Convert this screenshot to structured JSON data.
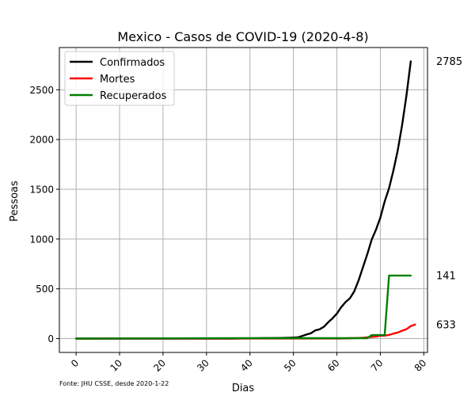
{
  "chart_data": {
    "type": "line",
    "title": "Mexico - Casos de COVID-19 (2020-4-8)",
    "xlabel": "Dias",
    "ylabel": "Pessoas",
    "xlim": [
      -3.85,
      80.85
    ],
    "ylim": [
      -139.25,
      2924.25
    ],
    "x_ticks": [
      0,
      10,
      20,
      30,
      40,
      50,
      60,
      70,
      80
    ],
    "y_ticks": [
      0,
      500,
      1000,
      1500,
      2000,
      2500
    ],
    "grid": true,
    "legend_position": "top-left",
    "source_note": "Fonte: JHU CSSE, desde 2020-1-22",
    "end_labels": [
      "2785",
      "633",
      "141"
    ],
    "series": [
      {
        "name": "Confirmados",
        "color": "#000000",
        "points": [
          [
            0,
            0
          ],
          [
            36,
            0
          ],
          [
            37,
            1
          ],
          [
            40,
            2
          ],
          [
            43,
            4
          ],
          [
            45,
            5
          ],
          [
            47,
            6
          ],
          [
            49,
            8
          ],
          [
            50,
            10
          ],
          [
            51,
            12
          ],
          [
            52,
            26
          ],
          [
            53,
            41
          ],
          [
            54,
            53
          ],
          [
            55,
            82
          ],
          [
            56,
            93
          ],
          [
            57,
            118
          ],
          [
            58,
            164
          ],
          [
            59,
            203
          ],
          [
            60,
            251
          ],
          [
            61,
            316
          ],
          [
            62,
            367
          ],
          [
            63,
            405
          ],
          [
            64,
            475
          ],
          [
            65,
            585
          ],
          [
            66,
            717
          ],
          [
            67,
            848
          ],
          [
            68,
            993
          ],
          [
            69,
            1094
          ],
          [
            70,
            1215
          ],
          [
            71,
            1378
          ],
          [
            72,
            1510
          ],
          [
            73,
            1688
          ],
          [
            74,
            1890
          ],
          [
            75,
            2143
          ],
          [
            76,
            2439
          ],
          [
            77,
            2785
          ]
        ]
      },
      {
        "name": "Mortes",
        "color": "#ff0000",
        "points": [
          [
            0,
            0
          ],
          [
            60,
            1
          ],
          [
            62,
            2
          ],
          [
            63,
            4
          ],
          [
            64,
            5
          ],
          [
            65,
            6
          ],
          [
            66,
            8
          ],
          [
            67,
            12
          ],
          [
            68,
            16
          ],
          [
            69,
            20
          ],
          [
            70,
            28
          ],
          [
            71,
            29
          ],
          [
            72,
            37
          ],
          [
            73,
            50
          ],
          [
            74,
            60
          ],
          [
            75,
            79
          ],
          [
            76,
            94
          ],
          [
            77,
            125
          ],
          [
            78,
            141
          ]
        ]
      },
      {
        "name": "Recuperados",
        "color": "#008000",
        "points": [
          [
            0,
            0
          ],
          [
            37,
            4
          ],
          [
            67,
            4
          ],
          [
            68,
            35
          ],
          [
            71,
            35
          ],
          [
            72,
            633
          ],
          [
            77,
            633
          ]
        ]
      }
    ]
  }
}
